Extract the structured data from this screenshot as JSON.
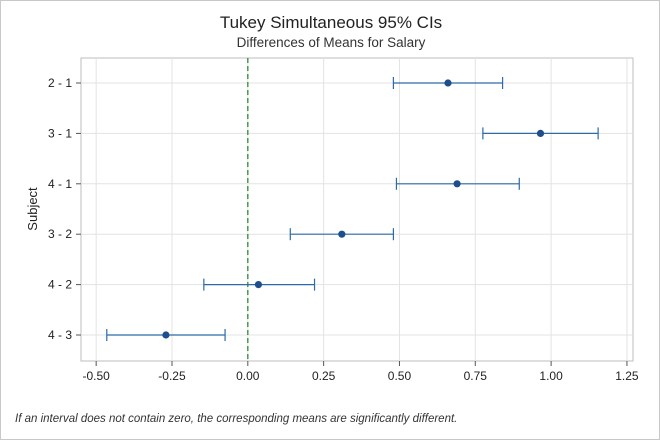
{
  "chart_data": {
    "type": "interval",
    "title": "Tukey Simultaneous 95% CIs",
    "subtitle": "Differences of Means for Salary",
    "ylabel": "Subject",
    "xlabel": "",
    "xlim": [
      -0.55,
      1.27
    ],
    "xticks": [
      -0.5,
      -0.25,
      0.0,
      0.25,
      0.5,
      0.75,
      1.0,
      1.25
    ],
    "xtick_labels": [
      "-0.50",
      "-0.25",
      "0.00",
      "0.25",
      "0.50",
      "0.75",
      "1.00",
      "1.25"
    ],
    "grid": true,
    "reference_line": {
      "x": 0,
      "style": "dashed",
      "color": "#2e8b3a"
    },
    "point_color": "#1f4e8c",
    "interval_color": "#2d6aa6",
    "categories": [
      "2 - 1",
      "3 - 1",
      "4 - 1",
      "3 - 2",
      "4 - 2",
      "4 - 3"
    ],
    "estimates": [
      0.66,
      0.965,
      0.69,
      0.31,
      0.035,
      -0.27
    ],
    "lower": [
      0.48,
      0.775,
      0.49,
      0.14,
      -0.145,
      -0.465
    ],
    "upper": [
      0.84,
      1.155,
      0.895,
      0.48,
      0.22,
      -0.075
    ]
  },
  "footnote": "If an interval does not contain zero, the corresponding means are significantly different."
}
